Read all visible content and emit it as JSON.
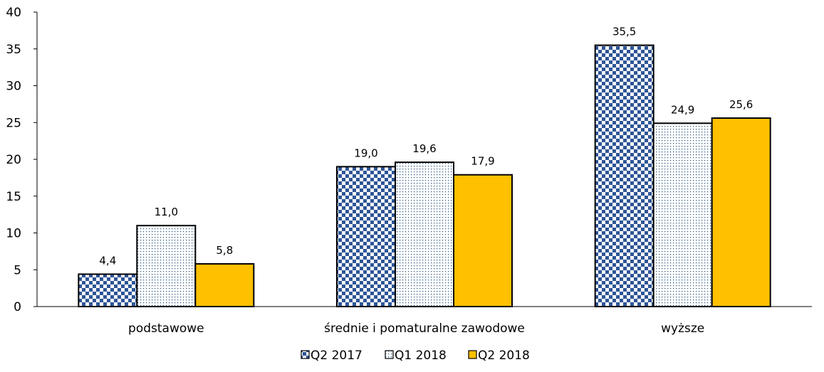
{
  "chart_data": {
    "type": "bar",
    "categories": [
      "podstawowe",
      "średnie i pomaturalne zawodowe",
      "wyższe"
    ],
    "series": [
      {
        "name": "Q2 2017",
        "values": [
          4.4,
          19.0,
          35.5
        ],
        "labels": [
          "4,4",
          "19,0",
          "35,5"
        ],
        "pattern": "checker",
        "color": "#2E5597"
      },
      {
        "name": "Q1 2018",
        "values": [
          11.0,
          19.6,
          24.9
        ],
        "labels": [
          "11,0",
          "19,6",
          "24,9"
        ],
        "pattern": "dots",
        "color": "#1F4E79"
      },
      {
        "name": "Q2 2018",
        "values": [
          5.8,
          17.9,
          25.6
        ],
        "labels": [
          "5,8",
          "17,9",
          "25,6"
        ],
        "pattern": "solid",
        "color": "#FFC000"
      }
    ],
    "ylim": [
      0,
      40
    ],
    "yticks": [
      0,
      5,
      10,
      15,
      20,
      25,
      30,
      35,
      40
    ],
    "grid": false,
    "legend_position": "bottom"
  }
}
